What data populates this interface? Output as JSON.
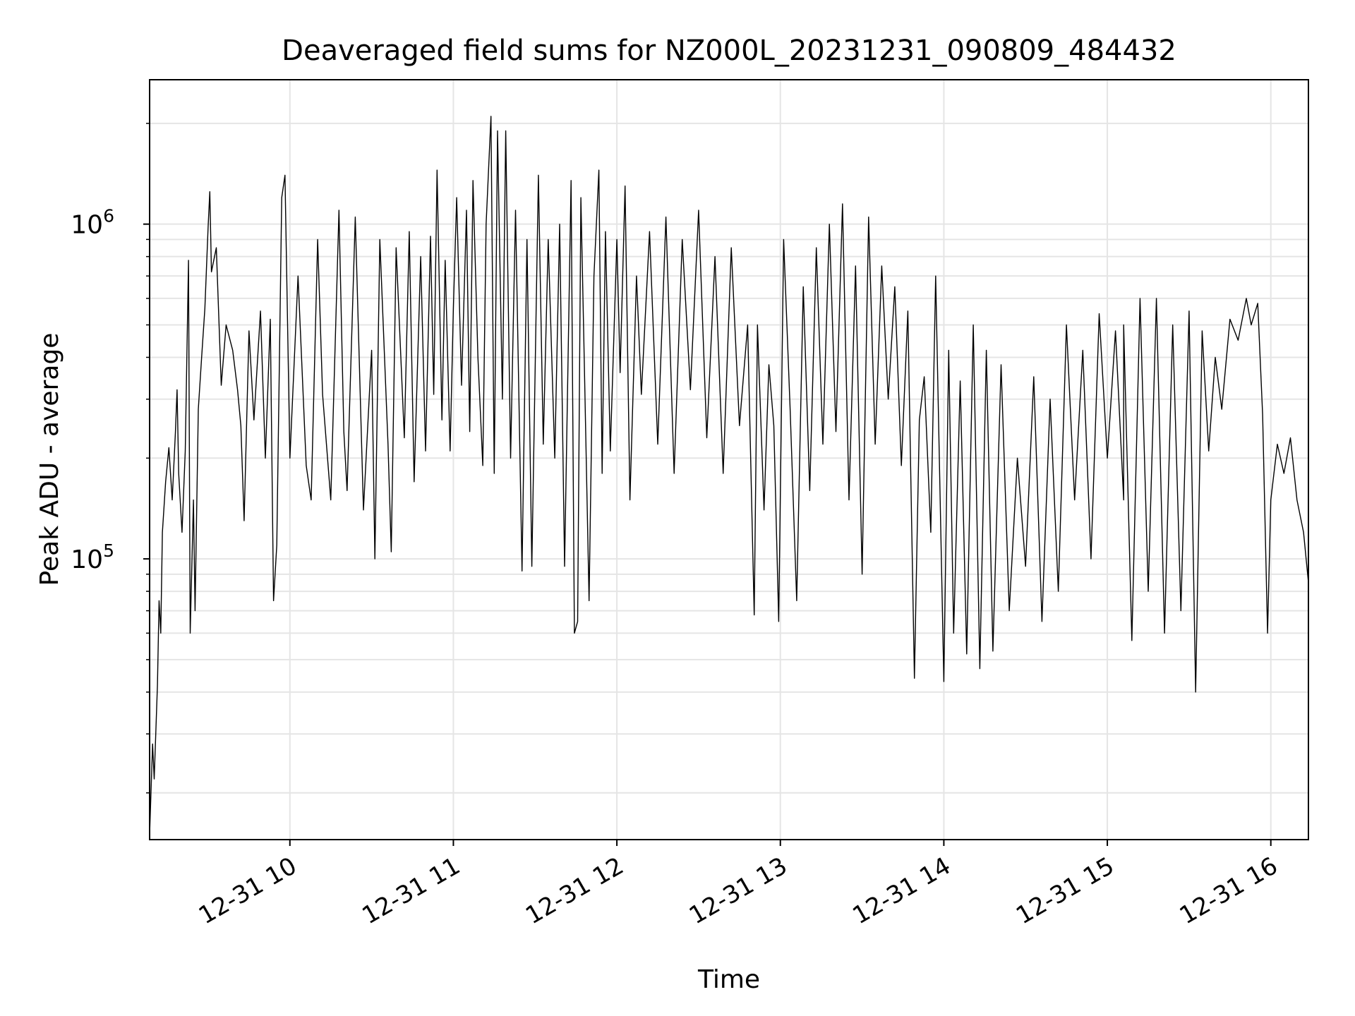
{
  "chart_data": {
    "type": "line",
    "title": "Deaveraged field sums for NZ000L_20231231_090809_484432",
    "xlabel": "Time",
    "ylabel": "Peak ADU - average",
    "x_unit": "hours",
    "x_range": [
      9.142,
      16.23
    ],
    "xticks": [
      {
        "value": 10,
        "label": "12-31 10"
      },
      {
        "value": 11,
        "label": "12-31 11"
      },
      {
        "value": 12,
        "label": "12-31 12"
      },
      {
        "value": 13,
        "label": "12-31 13"
      },
      {
        "value": 14,
        "label": "12-31 14"
      },
      {
        "value": 15,
        "label": "12-31 15"
      },
      {
        "value": 16,
        "label": "12-31 16"
      }
    ],
    "yscale": "log",
    "ylim": [
      14500,
      2700000
    ],
    "yticks": [
      {
        "value": 100000,
        "base": "10",
        "exp": "5"
      },
      {
        "value": 1000000,
        "base": "10",
        "exp": "6"
      }
    ],
    "grid": true,
    "line_color": "#000000",
    "grid_color": "#e5e5e5",
    "series": [
      {
        "values": [
          [
            9.142,
            15000
          ],
          [
            9.16,
            28000
          ],
          [
            9.17,
            22000
          ],
          [
            9.19,
            42000
          ],
          [
            9.2,
            75000
          ],
          [
            9.21,
            60000
          ],
          [
            9.22,
            120000
          ],
          [
            9.24,
            170000
          ],
          [
            9.26,
            215000
          ],
          [
            9.28,
            150000
          ],
          [
            9.3,
            240000
          ],
          [
            9.31,
            320000
          ],
          [
            9.32,
            180000
          ],
          [
            9.34,
            120000
          ],
          [
            9.36,
            210000
          ],
          [
            9.38,
            780000
          ],
          [
            9.39,
            60000
          ],
          [
            9.41,
            150000
          ],
          [
            9.42,
            70000
          ],
          [
            9.44,
            280000
          ],
          [
            9.46,
            400000
          ],
          [
            9.48,
            560000
          ],
          [
            9.5,
            980000
          ],
          [
            9.51,
            1250000
          ],
          [
            9.52,
            720000
          ],
          [
            9.55,
            850000
          ],
          [
            9.58,
            330000
          ],
          [
            9.61,
            500000
          ],
          [
            9.65,
            420000
          ],
          [
            9.68,
            320000
          ],
          [
            9.7,
            250000
          ],
          [
            9.72,
            130000
          ],
          [
            9.75,
            480000
          ],
          [
            9.78,
            260000
          ],
          [
            9.82,
            550000
          ],
          [
            9.85,
            200000
          ],
          [
            9.88,
            520000
          ],
          [
            9.9,
            75000
          ],
          [
            9.92,
            110000
          ],
          [
            9.95,
            1200000
          ],
          [
            9.97,
            1400000
          ],
          [
            10.0,
            200000
          ],
          [
            10.05,
            700000
          ],
          [
            10.1,
            190000
          ],
          [
            10.13,
            150000
          ],
          [
            10.17,
            900000
          ],
          [
            10.2,
            310000
          ],
          [
            10.25,
            150000
          ],
          [
            10.3,
            1100000
          ],
          [
            10.33,
            240000
          ],
          [
            10.35,
            160000
          ],
          [
            10.4,
            1050000
          ],
          [
            10.45,
            140000
          ],
          [
            10.5,
            420000
          ],
          [
            10.52,
            100000
          ],
          [
            10.55,
            900000
          ],
          [
            10.6,
            220000
          ],
          [
            10.62,
            105000
          ],
          [
            10.65,
            850000
          ],
          [
            10.7,
            230000
          ],
          [
            10.73,
            950000
          ],
          [
            10.76,
            170000
          ],
          [
            10.8,
            800000
          ],
          [
            10.83,
            210000
          ],
          [
            10.86,
            920000
          ],
          [
            10.88,
            310000
          ],
          [
            10.9,
            1450000
          ],
          [
            10.93,
            260000
          ],
          [
            10.95,
            780000
          ],
          [
            10.98,
            210000
          ],
          [
            11.0,
            560000
          ],
          [
            11.02,
            1200000
          ],
          [
            11.05,
            330000
          ],
          [
            11.08,
            1100000
          ],
          [
            11.1,
            240000
          ],
          [
            11.12,
            1350000
          ],
          [
            11.15,
            400000
          ],
          [
            11.18,
            190000
          ],
          [
            11.2,
            1000000
          ],
          [
            11.23,
            2100000
          ],
          [
            11.25,
            180000
          ],
          [
            11.27,
            1900000
          ],
          [
            11.3,
            300000
          ],
          [
            11.32,
            1900000
          ],
          [
            11.35,
            200000
          ],
          [
            11.38,
            1100000
          ],
          [
            11.42,
            92000
          ],
          [
            11.45,
            900000
          ],
          [
            11.48,
            95000
          ],
          [
            11.52,
            1400000
          ],
          [
            11.55,
            220000
          ],
          [
            11.58,
            900000
          ],
          [
            11.62,
            200000
          ],
          [
            11.65,
            1000000
          ],
          [
            11.68,
            95000
          ],
          [
            11.72,
            1350000
          ],
          [
            11.74,
            60000
          ],
          [
            11.76,
            65000
          ],
          [
            11.78,
            1200000
          ],
          [
            11.8,
            400000
          ],
          [
            11.83,
            75000
          ],
          [
            11.86,
            700000
          ],
          [
            11.89,
            1450000
          ],
          [
            11.91,
            180000
          ],
          [
            11.93,
            950000
          ],
          [
            11.96,
            210000
          ],
          [
            12.0,
            900000
          ],
          [
            12.02,
            360000
          ],
          [
            12.05,
            1300000
          ],
          [
            12.08,
            150000
          ],
          [
            12.12,
            700000
          ],
          [
            12.15,
            310000
          ],
          [
            12.2,
            950000
          ],
          [
            12.25,
            220000
          ],
          [
            12.3,
            1050000
          ],
          [
            12.35,
            180000
          ],
          [
            12.4,
            900000
          ],
          [
            12.45,
            320000
          ],
          [
            12.5,
            1100000
          ],
          [
            12.55,
            230000
          ],
          [
            12.6,
            800000
          ],
          [
            12.65,
            180000
          ],
          [
            12.7,
            850000
          ],
          [
            12.75,
            250000
          ],
          [
            12.8,
            500000
          ],
          [
            12.84,
            68000
          ],
          [
            12.86,
            500000
          ],
          [
            12.9,
            140000
          ],
          [
            12.93,
            380000
          ],
          [
            12.96,
            250000
          ],
          [
            12.99,
            65000
          ],
          [
            13.02,
            900000
          ],
          [
            13.06,
            280000
          ],
          [
            13.1,
            75000
          ],
          [
            13.14,
            650000
          ],
          [
            13.18,
            160000
          ],
          [
            13.22,
            850000
          ],
          [
            13.26,
            220000
          ],
          [
            13.3,
            1000000
          ],
          [
            13.34,
            240000
          ],
          [
            13.38,
            1150000
          ],
          [
            13.42,
            150000
          ],
          [
            13.46,
            750000
          ],
          [
            13.5,
            90000
          ],
          [
            13.54,
            1050000
          ],
          [
            13.58,
            220000
          ],
          [
            13.62,
            750000
          ],
          [
            13.66,
            300000
          ],
          [
            13.7,
            650000
          ],
          [
            13.74,
            190000
          ],
          [
            13.78,
            550000
          ],
          [
            13.82,
            44000
          ],
          [
            13.85,
            260000
          ],
          [
            13.88,
            350000
          ],
          [
            13.92,
            120000
          ],
          [
            13.95,
            700000
          ],
          [
            14.0,
            43000
          ],
          [
            14.03,
            420000
          ],
          [
            14.06,
            60000
          ],
          [
            14.1,
            340000
          ],
          [
            14.14,
            52000
          ],
          [
            14.18,
            500000
          ],
          [
            14.22,
            47000
          ],
          [
            14.26,
            420000
          ],
          [
            14.3,
            53000
          ],
          [
            14.35,
            380000
          ],
          [
            14.4,
            70000
          ],
          [
            14.45,
            200000
          ],
          [
            14.5,
            95000
          ],
          [
            14.55,
            350000
          ],
          [
            14.6,
            65000
          ],
          [
            14.65,
            300000
          ],
          [
            14.7,
            80000
          ],
          [
            14.75,
            500000
          ],
          [
            14.8,
            150000
          ],
          [
            14.85,
            420000
          ],
          [
            14.9,
            100000
          ],
          [
            14.95,
            540000
          ],
          [
            15.0,
            200000
          ],
          [
            15.05,
            480000
          ],
          [
            15.1,
            150000
          ],
          [
            15.1,
            500000
          ],
          [
            15.15,
            57000
          ],
          [
            15.2,
            600000
          ],
          [
            15.25,
            80000
          ],
          [
            15.3,
            600000
          ],
          [
            15.35,
            60000
          ],
          [
            15.4,
            500000
          ],
          [
            15.45,
            70000
          ],
          [
            15.5,
            550000
          ],
          [
            15.54,
            40000
          ],
          [
            15.58,
            480000
          ],
          [
            15.62,
            210000
          ],
          [
            15.66,
            400000
          ],
          [
            15.7,
            280000
          ],
          [
            15.75,
            520000
          ],
          [
            15.8,
            450000
          ],
          [
            15.85,
            600000
          ],
          [
            15.88,
            500000
          ],
          [
            15.92,
            580000
          ],
          [
            15.95,
            270000
          ],
          [
            15.98,
            60000
          ],
          [
            16.0,
            150000
          ],
          [
            16.04,
            220000
          ],
          [
            16.08,
            180000
          ],
          [
            16.12,
            230000
          ],
          [
            16.16,
            150000
          ],
          [
            16.2,
            120000
          ],
          [
            16.23,
            85000
          ]
        ]
      }
    ]
  }
}
